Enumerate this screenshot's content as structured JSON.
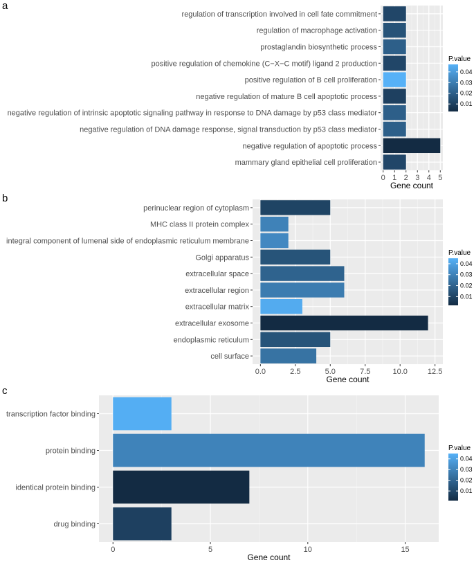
{
  "legend_title": "P.value",
  "color_scale": {
    "low_color": "#132B43",
    "high_color": "#56B1F7"
  },
  "chart_data": [
    {
      "panel_label": "a",
      "type": "bar",
      "orientation": "horizontal",
      "categories": [
        "regulation of transcription involved in cell fate commitment",
        "regulation of macrophage activation",
        "prostaglandin biosynthetic process",
        "positive regulation of chemokine (C−X−C motif) ligand 2 production",
        "positive regulation of B cell proliferation",
        "negative regulation of mature B cell apoptotic process",
        "negative regulation of intrinsic apoptotic signaling pathway in response to DNA damage by p53 class mediator",
        "negative regulation of DNA damage response, signal transduction by p53 class mediator",
        "negative regulation of apoptotic process",
        "mammary gland epithelial cell proliferation"
      ],
      "values": [
        2,
        2,
        2,
        2,
        2,
        2,
        2,
        2,
        5,
        2
      ],
      "pvalues": [
        0.012,
        0.016,
        0.02,
        0.012,
        0.047,
        0.01,
        0.02,
        0.02,
        0.003,
        0.012
      ],
      "xlabel": "Gene count",
      "xlim": [
        0,
        5
      ],
      "xticks": [
        0,
        1,
        2,
        3,
        4,
        5
      ],
      "xtick_labels": [
        "0",
        "1",
        "2",
        "3",
        "4",
        "5"
      ],
      "legend_ticks": [
        0.01,
        0.02,
        0.03,
        0.04
      ],
      "legend_tick_labels": [
        "0.01",
        "0.02",
        "0.03",
        "0.04"
      ],
      "legend_range": [
        0.003,
        0.047
      ]
    },
    {
      "panel_label": "b",
      "type": "bar",
      "orientation": "horizontal",
      "categories": [
        "perinuclear region of cytoplasm",
        "MHC class II protein complex",
        "integral component of lumenal side of endoplasmic reticulum membrane",
        "Golgi apparatus",
        "extracellular space",
        "extracellular region",
        "extracellular matrix",
        "extracellular exosome",
        "endoplasmic reticulum",
        "cell surface"
      ],
      "values": [
        5,
        2,
        2,
        5,
        6,
        6,
        3,
        12,
        5,
        4
      ],
      "pvalues": [
        0.01,
        0.03,
        0.032,
        0.015,
        0.02,
        0.028,
        0.043,
        0.002,
        0.015,
        0.025
      ],
      "xlabel": "Gene count",
      "xlim": [
        0,
        12.5
      ],
      "xticks": [
        0,
        2.5,
        5,
        7.5,
        10,
        12.5
      ],
      "xtick_labels": [
        "0.0",
        "2.5",
        "5.0",
        "7.5",
        "10.0",
        "12.5"
      ],
      "legend_ticks": [
        0.01,
        0.02,
        0.03,
        0.04
      ],
      "legend_tick_labels": [
        "0.01",
        "0.02",
        "0.03",
        "0.04"
      ],
      "legend_range": [
        0.002,
        0.045
      ]
    },
    {
      "panel_label": "c",
      "type": "bar",
      "orientation": "horizontal",
      "categories": [
        "transcription factor binding",
        "protein binding",
        "identical protein binding",
        "drug binding"
      ],
      "values": [
        3,
        16,
        7,
        3
      ],
      "pvalues": [
        0.044,
        0.03,
        0.001,
        0.008
      ],
      "xlabel": "Gene count",
      "xlim": [
        0,
        16
      ],
      "xticks": [
        0,
        5,
        10,
        15
      ],
      "xtick_labels": [
        "0",
        "5",
        "10",
        "15"
      ],
      "legend_ticks": [
        0.01,
        0.02,
        0.03,
        0.04
      ],
      "legend_tick_labels": [
        "0.01",
        "0.02",
        "0.03",
        "0.04"
      ],
      "legend_range": [
        0.001,
        0.045
      ]
    }
  ]
}
